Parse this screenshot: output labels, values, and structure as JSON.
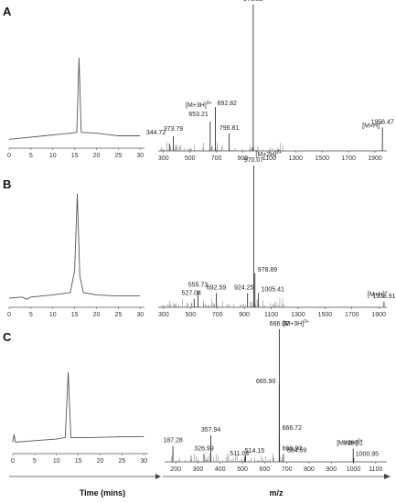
{
  "panels": [
    {
      "letter": "A",
      "chromatogram": {
        "type": "line",
        "xticks": [
          0,
          5,
          10,
          15,
          20,
          25,
          30
        ],
        "xlim": [
          0,
          31
        ],
        "baseline": [
          [
            0,
            0.06
          ],
          [
            4,
            0.08
          ],
          [
            8,
            0.1
          ],
          [
            12,
            0.12
          ],
          [
            14,
            0.13
          ],
          [
            15.5,
            0.14
          ],
          [
            16,
            1.0
          ],
          [
            16.5,
            0.14
          ],
          [
            20,
            0.13
          ],
          [
            25,
            0.1
          ],
          [
            30,
            0.1
          ]
        ]
      },
      "spectrum": {
        "type": "bar",
        "xticks": [
          300,
          500,
          700,
          900,
          1100,
          1300,
          1500,
          1700,
          1900
        ],
        "xlim": [
          260,
          1990
        ],
        "peaks": [
          {
            "mz": 344.72,
            "label": "344.72",
            "rel": 0.05
          },
          {
            "mz": 373.79,
            "label": "373.79",
            "rel": 0.1
          },
          {
            "mz": 653.21,
            "label": "653.21",
            "rel": 0.2
          },
          {
            "mz": 692.82,
            "label": "692.82",
            "rel": 0.3
          },
          {
            "mz": 796.81,
            "label": "796.81",
            "rel": 0.12
          },
          {
            "mz": 978.82,
            "label": "978.82",
            "rel": 1.0
          },
          {
            "mz": 1956.47,
            "label": "1956.47",
            "rel": 0.16
          }
        ],
        "ions": [
          {
            "text": "[M+3H]",
            "sup": "3+",
            "near_mz": 620
          },
          {
            "text": "[M+2H]",
            "sup": "2+",
            "near_mz": 978.82
          },
          {
            "text": "[M+H]",
            "sup": "+",
            "near_mz": 1956.47
          }
        ]
      }
    },
    {
      "letter": "B",
      "chromatogram": {
        "type": "line",
        "xticks": [
          0,
          5,
          10,
          15,
          20,
          25,
          30
        ],
        "xlim": [
          0,
          31
        ],
        "baseline": [
          [
            0,
            0.05
          ],
          [
            3,
            0.06
          ],
          [
            4,
            0.04
          ],
          [
            5,
            0.06
          ],
          [
            10,
            0.08
          ],
          [
            14,
            0.1
          ],
          [
            15,
            0.3
          ],
          [
            15.6,
            1.0
          ],
          [
            16.2,
            0.25
          ],
          [
            17,
            0.1
          ],
          [
            20,
            0.08
          ],
          [
            25,
            0.07
          ],
          [
            30,
            0.07
          ]
        ]
      },
      "spectrum": {
        "type": "bar",
        "xticks": [
          300,
          500,
          700,
          900,
          1100,
          1300,
          1500,
          1700,
          1900
        ],
        "xlim": [
          260,
          1960
        ],
        "peaks": [
          {
            "mz": 527.04,
            "label": "527.04",
            "rel": 0.06
          },
          {
            "mz": 555.73,
            "label": "555.73",
            "rel": 0.12
          },
          {
            "mz": 692.59,
            "label": "692.59",
            "rel": 0.1
          },
          {
            "mz": 924.25,
            "label": "924.25",
            "rel": 0.1
          },
          {
            "mz": 970.07,
            "label": "970.07",
            "rel": 1.0
          },
          {
            "mz": 978.89,
            "label": "978.89",
            "rel": 0.24
          },
          {
            "mz": 1005.41,
            "label": "1005.41",
            "rel": 0.1
          },
          {
            "mz": 1938.91,
            "label": "1938.91",
            "rel": 0.04
          }
        ],
        "ions": [
          {
            "text": "[M+2H]",
            "sup": "2+",
            "near_mz": 970.07
          },
          {
            "text": "[M+H]",
            "sup": "+",
            "near_mz": 1938.91
          }
        ]
      }
    },
    {
      "letter": "C",
      "chromatogram": {
        "type": "line",
        "xticks": [
          0,
          5,
          10,
          15,
          20,
          25,
          30
        ],
        "xlim": [
          0,
          31
        ],
        "baseline": [
          [
            0,
            0.1
          ],
          [
            0.3,
            0.2
          ],
          [
            0.6,
            0.1
          ],
          [
            5,
            0.12
          ],
          [
            10,
            0.14
          ],
          [
            12,
            0.16
          ],
          [
            12.7,
            1.0
          ],
          [
            13.3,
            0.16
          ],
          [
            18,
            0.16
          ],
          [
            25,
            0.17
          ],
          [
            30,
            0.17
          ]
        ]
      },
      "spectrum": {
        "type": "bar",
        "xticks": [
          200,
          300,
          400,
          500,
          600,
          700,
          800,
          900,
          1000,
          1100
        ],
        "xlim": [
          150,
          1150
        ],
        "peaks": [
          {
            "mz": 187.28,
            "label": "187.28",
            "rel": 0.12
          },
          {
            "mz": 326.99,
            "label": "326.99",
            "rel": 0.06
          },
          {
            "mz": 357.94,
            "label": "357.94",
            "rel": 0.2
          },
          {
            "mz": 511.08,
            "label": "511.08",
            "rel": 0.04
          },
          {
            "mz": 514.15,
            "label": "514.15",
            "rel": 0.05
          },
          {
            "mz": 665.9,
            "label": "665.90",
            "rel": 0.58
          },
          {
            "mz": 666.02,
            "label": "666.02",
            "rel": 1.0
          },
          {
            "mz": 666.72,
            "label": "666.72",
            "rel": 0.2
          },
          {
            "mz": 666.9,
            "label": "666.90",
            "rel": 0.14
          },
          {
            "mz": 684.59,
            "label": "684.59",
            "rel": 0.06
          },
          {
            "mz": 998.61,
            "label": "998.61",
            "rel": 0.1
          },
          {
            "mz": 1000.95,
            "label": "1000.95",
            "rel": 0.03
          }
        ],
        "ions": [
          {
            "text": "[M+3H]",
            "sup": "3+",
            "near_mz": 666.02
          },
          {
            "text": "[M+2H]",
            "sup": "2+",
            "near_mz": 998.61
          }
        ]
      }
    }
  ],
  "xlabel_left": "Time (mins)",
  "xlabel_right": "m/z"
}
